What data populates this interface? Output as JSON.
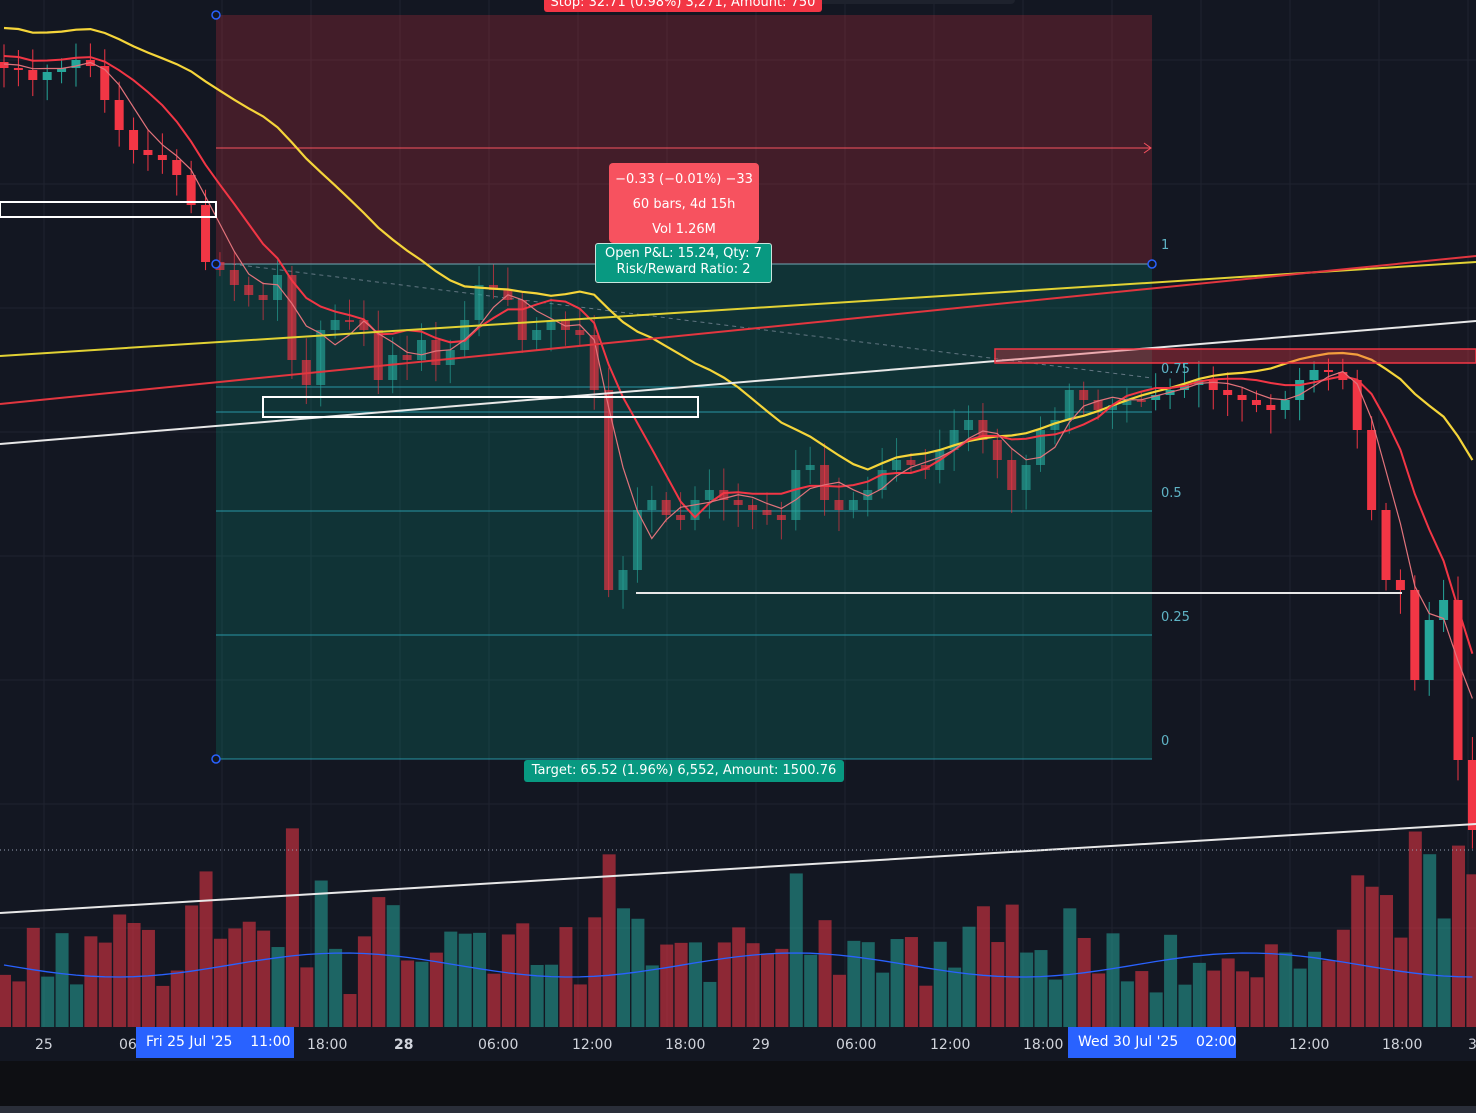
{
  "labels": {
    "stop": "Stop: 32.71 (0.98%) 3,271, Amount: 750",
    "measure_change": "−0.33 (−0.01%) −33",
    "measure_bars": "60 bars, 4d 15h",
    "measure_vol": "Vol 1.26M",
    "open_pnl": "Open P&L: 15.24, Qty: 7",
    "risk_reward": "Risk/Reward Ratio: 2",
    "target": "Target: 65.52 (1.96%) 6,552, Amount: 1500.76"
  },
  "fib_levels": [
    "1",
    "0.75",
    "0.5",
    "0.25",
    "0"
  ],
  "time_axis": {
    "labels": [
      "25",
      "06",
      "18:00",
      "28",
      "06:00",
      "12:00",
      "18:00",
      "29",
      "06:00",
      "12:00",
      "18:00",
      "12:00",
      "18:00",
      "3"
    ],
    "highlight_start": "Fri 25 Jul '25    11:00",
    "highlight_end": "Wed 30 Jul '25    02:00"
  },
  "colors": {
    "background": "#131722",
    "bull": "#26a69a",
    "bear": "#f23645",
    "stop_zone": "#f23645",
    "target_zone": "#089981",
    "axis_highlight": "#2962ff",
    "ma_yellow": "#f5d53a",
    "ma_red": "#f23645",
    "volume_ma": "#2962ff"
  }
}
